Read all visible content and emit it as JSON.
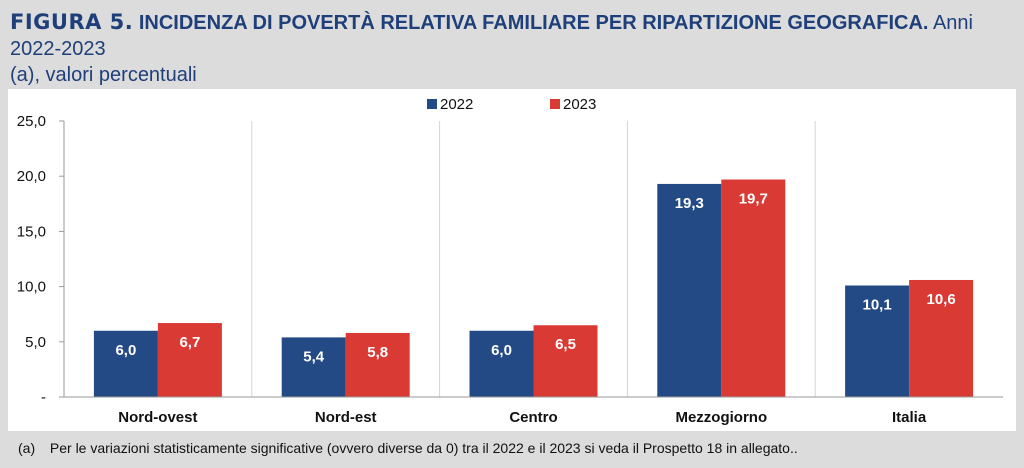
{
  "title": {
    "figure_label": "FIGURA 5.",
    "main": "INCIDENZA DI POVERTÀ RELATIVA FAMILIARE PER RIPARTIZIONE GEOGRAFICA.",
    "rest_line1": "Anni 2022-2023",
    "rest_line2": "(a), valori percentuali"
  },
  "footnote": {
    "mark": "(a)",
    "text": "Per le variazioni statisticamente significative (ovvero diverse da 0) tra il 2022 e il 2023 si veda il Prospetto 18 in allegato.."
  },
  "chart_data": {
    "type": "bar",
    "categories": [
      "Nord-ovest",
      "Nord-est",
      "Centro",
      "Mezzogiorno",
      "Italia"
    ],
    "series": [
      {
        "name": "2022",
        "values": [
          6.0,
          5.4,
          6.0,
          19.3,
          10.1
        ],
        "labels": [
          "6,0",
          "5,4",
          "6,0",
          "19,3",
          "10,1"
        ],
        "color": "#234a84"
      },
      {
        "name": "2023",
        "values": [
          6.7,
          5.8,
          6.5,
          19.7,
          10.6
        ],
        "labels": [
          "6,7",
          "5,8",
          "6,5",
          "19,7",
          "10,6"
        ],
        "color": "#d93a34"
      }
    ],
    "ylim": [
      0,
      25
    ],
    "yticks": [
      0,
      5,
      10,
      15,
      20,
      25
    ],
    "ytick_labels": [
      "-",
      "5,0",
      "10,0",
      "15,0",
      "20,0",
      "25,0"
    ],
    "grid": "vertical separators",
    "legend": "top-center",
    "plot_background": "#ffffff",
    "page_background": "#dcdcdc"
  }
}
